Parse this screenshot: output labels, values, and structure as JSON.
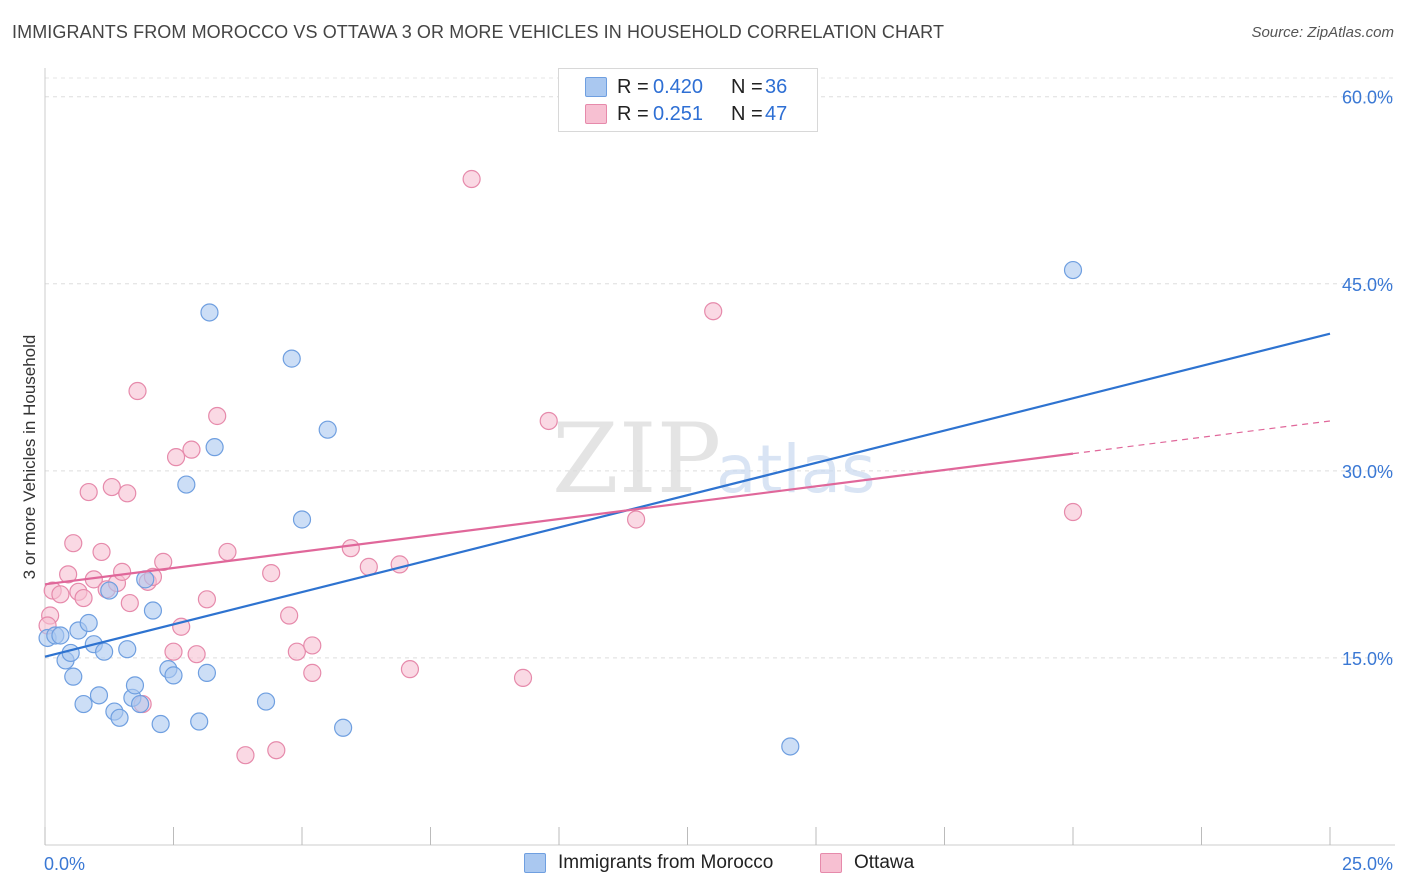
{
  "title": "IMMIGRANTS FROM MOROCCO VS OTTAWA 3 OR MORE VEHICLES IN HOUSEHOLD CORRELATION CHART",
  "source": "Source: ZipAtlas.com",
  "watermark": {
    "zip": "ZIP",
    "atlas": "atlas"
  },
  "legend": {
    "rows": [
      {
        "r_label": "R =",
        "r_value": "0.420",
        "n_label": "N =",
        "n_value": "36",
        "color": "#aac8f0",
        "border": "#6f9fe0"
      },
      {
        "r_label": "R =",
        "r_value": "0.251",
        "n_label": "N =",
        "n_value": "47",
        "color": "#f7c0d2",
        "border": "#e68aab"
      }
    ]
  },
  "bottom_legend": [
    {
      "label": "Immigrants from Morocco",
      "color": "#aac8f0",
      "border": "#6f9fe0"
    },
    {
      "label": "Ottawa",
      "color": "#f7c0d2",
      "border": "#e68aab"
    }
  ],
  "chart_data": {
    "type": "scatter",
    "title": "IMMIGRANTS FROM MOROCCO VS OTTAWA 3 OR MORE VEHICLES IN HOUSEHOLD CORRELATION CHART",
    "xlabel": "",
    "ylabel": "3 or more Vehicles in Household",
    "xlim": [
      0,
      25
    ],
    "ylim": [
      0,
      61.5
    ],
    "x_tick_labels": [
      "0.0%",
      "25.0%"
    ],
    "y_ticks": [
      15,
      30,
      45,
      60
    ],
    "y_tick_labels": [
      "15.0%",
      "30.0%",
      "45.0%",
      "60.0%"
    ],
    "grid": "horizontal dashed",
    "series": [
      {
        "name": "Immigrants from Morocco",
        "color": "#aac8f0",
        "stroke": "#6f9fe0",
        "line_color": "#2e73d0",
        "trend": {
          "x0": 0,
          "y0": 15.1,
          "x1": 25,
          "y1": 41.0,
          "dashed_from": null
        },
        "points": [
          [
            0.05,
            16.6
          ],
          [
            0.2,
            16.8
          ],
          [
            0.3,
            16.8
          ],
          [
            0.4,
            14.8
          ],
          [
            0.5,
            15.4
          ],
          [
            0.55,
            13.5
          ],
          [
            0.65,
            17.2
          ],
          [
            0.75,
            11.3
          ],
          [
            0.85,
            17.8
          ],
          [
            0.95,
            16.1
          ],
          [
            1.05,
            12.0
          ],
          [
            1.15,
            15.5
          ],
          [
            1.25,
            20.4
          ],
          [
            1.35,
            10.7
          ],
          [
            1.45,
            10.2
          ],
          [
            1.6,
            15.7
          ],
          [
            1.7,
            11.8
          ],
          [
            1.75,
            12.8
          ],
          [
            1.85,
            11.3
          ],
          [
            1.95,
            21.3
          ],
          [
            2.1,
            18.8
          ],
          [
            2.25,
            9.7
          ],
          [
            2.4,
            14.1
          ],
          [
            2.5,
            13.6
          ],
          [
            2.75,
            28.9
          ],
          [
            3.0,
            9.9
          ],
          [
            3.2,
            42.7
          ],
          [
            3.3,
            31.9
          ],
          [
            3.15,
            13.8
          ],
          [
            4.3,
            11.5
          ],
          [
            4.8,
            39.0
          ],
          [
            5.0,
            26.1
          ],
          [
            5.5,
            33.3
          ],
          [
            5.8,
            9.4
          ],
          [
            14.5,
            7.9
          ],
          [
            20.0,
            46.1
          ]
        ]
      },
      {
        "name": "Ottawa",
        "color": "#f7c0d2",
        "stroke": "#e68aab",
        "line_color": "#e0679a",
        "trend": {
          "x0": 0,
          "y0": 20.9,
          "x1": 25,
          "y1": 34.0,
          "dashed_from": 20.0
        },
        "points": [
          [
            0.1,
            18.4
          ],
          [
            0.15,
            20.4
          ],
          [
            0.3,
            20.1
          ],
          [
            0.45,
            21.7
          ],
          [
            0.55,
            24.2
          ],
          [
            0.65,
            20.3
          ],
          [
            0.75,
            19.8
          ],
          [
            0.85,
            28.3
          ],
          [
            0.95,
            21.3
          ],
          [
            1.1,
            23.5
          ],
          [
            1.2,
            20.5
          ],
          [
            1.3,
            28.7
          ],
          [
            1.4,
            21.0
          ],
          [
            1.5,
            21.9
          ],
          [
            1.6,
            28.2
          ],
          [
            1.65,
            19.4
          ],
          [
            1.8,
            36.4
          ],
          [
            1.9,
            11.3
          ],
          [
            2.0,
            21.1
          ],
          [
            2.1,
            21.5
          ],
          [
            2.3,
            22.7
          ],
          [
            2.5,
            15.5
          ],
          [
            2.55,
            31.1
          ],
          [
            2.65,
            17.5
          ],
          [
            2.85,
            31.7
          ],
          [
            2.95,
            15.3
          ],
          [
            3.15,
            19.7
          ],
          [
            3.35,
            34.4
          ],
          [
            3.55,
            23.5
          ],
          [
            3.9,
            7.2
          ],
          [
            4.4,
            21.8
          ],
          [
            4.5,
            7.6
          ],
          [
            4.75,
            18.4
          ],
          [
            4.9,
            15.5
          ],
          [
            5.2,
            16.0
          ],
          [
            5.2,
            13.8
          ],
          [
            5.95,
            23.8
          ],
          [
            6.3,
            22.3
          ],
          [
            6.9,
            22.5
          ],
          [
            7.1,
            14.1
          ],
          [
            8.3,
            53.4
          ],
          [
            9.3,
            13.4
          ],
          [
            9.8,
            34.0
          ],
          [
            11.5,
            26.1
          ],
          [
            13.0,
            42.8
          ],
          [
            20.0,
            26.7
          ],
          [
            0.05,
            17.6
          ]
        ]
      }
    ]
  }
}
